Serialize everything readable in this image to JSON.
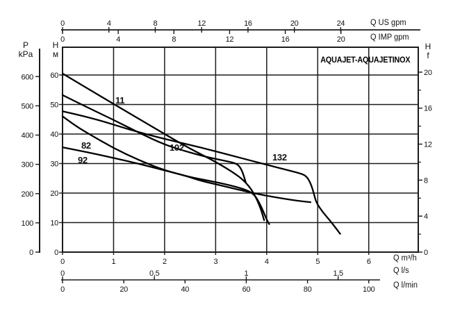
{
  "title": "AQUAJET-AQUAJETINOX",
  "chart_data": {
    "type": "line",
    "title": "AQUAJET-AQUAJETINOX",
    "grid": true,
    "xlim_m3h": [
      0,
      6.97
    ],
    "ylim_m": [
      0,
      69.4
    ],
    "x_axes": [
      {
        "name": "Q US gpm",
        "units_per_m3h": 4.4029,
        "ticks": [
          0,
          4,
          8,
          12,
          16,
          20,
          24
        ],
        "tick_labels": [
          "0",
          "4",
          "8",
          "12",
          "16",
          "20",
          "24"
        ]
      },
      {
        "name": "Q IMP gpm",
        "units_per_m3h": 3.6662,
        "ticks": [
          0,
          4,
          8,
          12,
          16,
          20
        ],
        "tick_labels": [
          "0",
          "4",
          "8",
          "12",
          "16",
          "20"
        ]
      },
      {
        "name": "Q m³/h",
        "units_per_m3h": 1,
        "ticks": [
          0,
          1,
          2,
          3,
          4,
          5,
          6
        ],
        "tick_labels": [
          "0",
          "1",
          "2",
          "3",
          "4",
          "5",
          "6"
        ]
      },
      {
        "name": "Q l/s",
        "units_per_m3h": 0.27778,
        "ticks": [
          0,
          0.5,
          1,
          1.5
        ],
        "tick_labels": [
          "0",
          "0,5",
          "1",
          "1,5"
        ]
      },
      {
        "name": "Q l/min",
        "units_per_m3h": 16.667,
        "ticks": [
          0,
          20,
          40,
          60,
          80,
          100
        ],
        "tick_labels": [
          "0",
          "20",
          "40",
          "60",
          "80",
          "100"
        ]
      }
    ],
    "y_axes": [
      {
        "name": "P kPa",
        "label_lines": [
          "P",
          "kPa"
        ],
        "ticks": [
          0,
          100,
          200,
          300,
          400,
          500,
          600
        ]
      },
      {
        "name": "H м",
        "label_lines": [
          "H",
          "м"
        ],
        "ticks": [
          0,
          10,
          20,
          30,
          40,
          50,
          60
        ]
      },
      {
        "name": "H f",
        "label_lines": [
          "H",
          "f"
        ],
        "ticks": [
          0,
          4,
          8,
          12,
          16,
          20
        ],
        "minor_ticks": [
          2,
          6,
          10,
          14,
          18
        ],
        "feet_per_unit": 10
      }
    ],
    "series": [
      {
        "name": "11",
        "points": [
          [
            0,
            60.5
          ],
          [
            0.5,
            55.3
          ],
          [
            1,
            50.2
          ],
          [
            1.5,
            45.1
          ],
          [
            2,
            40
          ],
          [
            2.5,
            35
          ],
          [
            3,
            30.6
          ],
          [
            3.4,
            26.4
          ],
          [
            3.6,
            23.5
          ],
          [
            3.75,
            20
          ],
          [
            3.88,
            15
          ],
          [
            3.95,
            10.8
          ]
        ]
      },
      {
        "name": "102",
        "points": [
          [
            0,
            53.2
          ],
          [
            0.5,
            48.9
          ],
          [
            1,
            44.8
          ],
          [
            1.5,
            40.4
          ],
          [
            2,
            36.4
          ],
          [
            2.4,
            34.2
          ],
          [
            2.8,
            32.3
          ],
          [
            3.1,
            31.2
          ],
          [
            3.35,
            30.3
          ],
          [
            3.45,
            29.5
          ],
          [
            3.52,
            27.5
          ],
          [
            3.57,
            24.8
          ],
          [
            3.59,
            23.6
          ]
        ]
      },
      {
        "name": "132",
        "points": [
          [
            0,
            47.7
          ],
          [
            0.6,
            45.4
          ],
          [
            1.3,
            41.5
          ],
          [
            2,
            38.3
          ],
          [
            2.7,
            35.5
          ],
          [
            3.4,
            32.3
          ],
          [
            4,
            29.6
          ],
          [
            4.4,
            27.8
          ],
          [
            4.65,
            26.7
          ],
          [
            4.78,
            25.8
          ],
          [
            4.87,
            23
          ],
          [
            4.93,
            19.5
          ],
          [
            4.97,
            16.8
          ],
          [
            5.1,
            13.5
          ],
          [
            5.25,
            10.5
          ],
          [
            5.44,
            6.2
          ]
        ]
      },
      {
        "name": "82",
        "points": [
          [
            0,
            46
          ],
          [
            0.25,
            42.8
          ],
          [
            0.52,
            40
          ],
          [
            1,
            35.2
          ],
          [
            1.5,
            31.1
          ],
          [
            2,
            27.7
          ],
          [
            2.5,
            25.4
          ],
          [
            2.8,
            24.4
          ],
          [
            3.2,
            23
          ],
          [
            3.55,
            21.4
          ],
          [
            3.75,
            19.8
          ],
          [
            3.88,
            16
          ],
          [
            4,
            11
          ],
          [
            4.05,
            9.5
          ]
        ]
      },
      {
        "name": "92",
        "points": [
          [
            0,
            35.5
          ],
          [
            0.5,
            33.8
          ],
          [
            1,
            31.9
          ],
          [
            1.5,
            29.9
          ],
          [
            2,
            27.7
          ],
          [
            2.4,
            25.9
          ],
          [
            2.72,
            24.1
          ],
          [
            3.1,
            22.6
          ],
          [
            3.5,
            20.9
          ],
          [
            3.9,
            19.4
          ],
          [
            4.3,
            18.2
          ],
          [
            4.6,
            17.4
          ],
          [
            4.86,
            16.9
          ]
        ]
      }
    ],
    "colors": {
      "line": "#000000",
      "grid": "#1a1a1a",
      "text": "#111111",
      "background": "#ffffff"
    }
  }
}
